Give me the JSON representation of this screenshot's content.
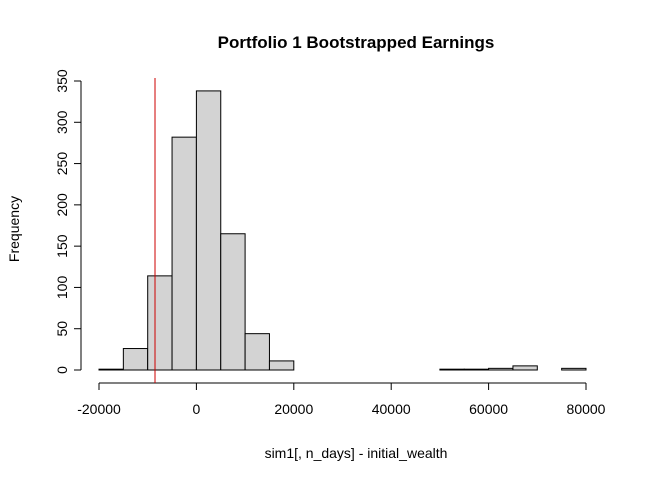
{
  "chart_data": {
    "type": "histogram",
    "title": "Portfolio 1 Bootstrapped Earnings",
    "xlabel": "sim1[, n_days] - initial_wealth",
    "ylabel": "Frequency",
    "bin_width": 5000,
    "bins": [
      {
        "start": -20000,
        "end": -15000,
        "count": 1
      },
      {
        "start": -15000,
        "end": -10000,
        "count": 26
      },
      {
        "start": -10000,
        "end": -5000,
        "count": 114
      },
      {
        "start": -5000,
        "end": 0,
        "count": 282
      },
      {
        "start": 0,
        "end": 5000,
        "count": 338
      },
      {
        "start": 5000,
        "end": 10000,
        "count": 165
      },
      {
        "start": 10000,
        "end": 15000,
        "count": 44
      },
      {
        "start": 15000,
        "end": 20000,
        "count": 11
      },
      {
        "start": 20000,
        "end": 25000,
        "count": 0
      },
      {
        "start": 25000,
        "end": 30000,
        "count": 0
      },
      {
        "start": 30000,
        "end": 35000,
        "count": 0
      },
      {
        "start": 35000,
        "end": 40000,
        "count": 0
      },
      {
        "start": 40000,
        "end": 45000,
        "count": 0
      },
      {
        "start": 45000,
        "end": 50000,
        "count": 0
      },
      {
        "start": 50000,
        "end": 55000,
        "count": 1
      },
      {
        "start": 55000,
        "end": 60000,
        "count": 1
      },
      {
        "start": 60000,
        "end": 65000,
        "count": 2
      },
      {
        "start": 65000,
        "end": 70000,
        "count": 5
      },
      {
        "start": 70000,
        "end": 75000,
        "count": 0
      },
      {
        "start": 75000,
        "end": 80000,
        "count": 2
      }
    ],
    "xlim": [
      -20000,
      85000
    ],
    "ylim": [
      0,
      350
    ],
    "x_ticks": [
      -20000,
      0,
      20000,
      40000,
      60000,
      80000
    ],
    "x_tick_labels": [
      "-20000",
      "0",
      "20000",
      "40000",
      "60000",
      "80000"
    ],
    "y_ticks": [
      0,
      50,
      100,
      150,
      200,
      250,
      300,
      350
    ],
    "y_tick_labels": [
      "0",
      "50",
      "100",
      "150",
      "200",
      "250",
      "300",
      "350"
    ],
    "vline": {
      "x": -8500,
      "color": "#cc0000"
    },
    "bar_fill": "#d3d3d3",
    "bar_stroke": "#000000",
    "grid": false
  }
}
